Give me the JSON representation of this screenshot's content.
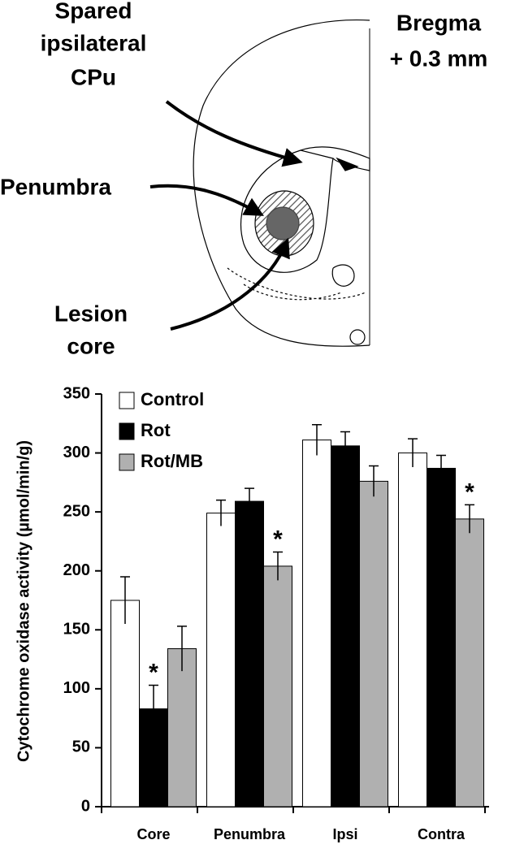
{
  "diagram": {
    "spared_label": [
      "Spared",
      "ipsilateral",
      "CPu"
    ],
    "bregma_label": [
      "Bregma",
      "+ 0.3 mm"
    ],
    "penumbra_label": "Penumbra",
    "core_label": [
      "Lesion",
      "core"
    ]
  },
  "chart_data": {
    "type": "bar",
    "y_label": "Cytochrome oxidase activity (µmol/min/g)",
    "categories": [
      "Core",
      "Penumbra",
      "Ipsi",
      "Contra"
    ],
    "series": [
      {
        "name": "Control",
        "color": "#ffffff",
        "values": [
          175,
          249,
          311,
          300
        ],
        "errors": [
          20,
          11,
          13,
          12
        ],
        "significance": [
          null,
          null,
          null,
          null
        ]
      },
      {
        "name": "Rot",
        "color": "#000000",
        "values": [
          83,
          259,
          306,
          287
        ],
        "errors": [
          20,
          11,
          12,
          11
        ],
        "significance": [
          "*",
          null,
          null,
          null
        ]
      },
      {
        "name": "Rot/MB",
        "color": "#b0b0b0",
        "values": [
          134,
          204,
          276,
          244
        ],
        "errors": [
          19,
          12,
          13,
          12
        ],
        "significance": [
          null,
          "*",
          null,
          "*"
        ]
      }
    ],
    "ylim": [
      0,
      350
    ],
    "yticks": [
      0,
      50,
      100,
      150,
      200,
      250,
      300,
      350
    ],
    "grid": false,
    "legend": "top-left"
  }
}
